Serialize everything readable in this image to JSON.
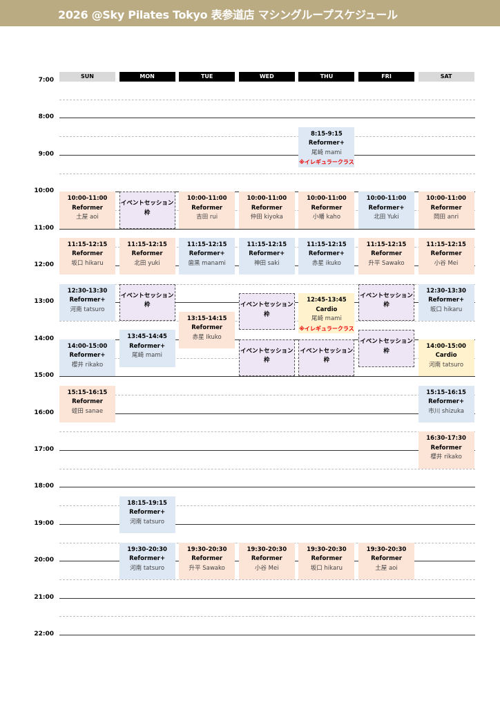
{
  "title": "2026 @Sky Pilates Tokyo 表参道店 マシングループスケジュール",
  "days": [
    {
      "label": "SUN",
      "style": "light"
    },
    {
      "label": "MON",
      "style": "dark"
    },
    {
      "label": "TUE",
      "style": "dark"
    },
    {
      "label": "WED",
      "style": "dark"
    },
    {
      "label": "THU",
      "style": "dark"
    },
    {
      "label": "FRI",
      "style": "dark"
    },
    {
      "label": "SAT",
      "style": "light"
    }
  ],
  "hours": [
    "7:00",
    "8:00",
    "9:00",
    "10:00",
    "11:00",
    "12:00",
    "13:00",
    "14:00",
    "15:00",
    "16:00",
    "17:00",
    "18:00",
    "19:00",
    "20:00",
    "21:00",
    "22:00"
  ],
  "colors": {
    "Reformer": "#fce4d6",
    "Reformer+": "#dde8f4",
    "Cardio": "#fff2cc",
    "event": "#eee6f5",
    "banner": "#bbab83",
    "note": "#ee0000"
  },
  "event_label": "イベントセッション枠",
  "classes": [
    {
      "day": 4,
      "time": "8:15-9:15",
      "class": "Reformer+",
      "instructor": "尾崎 mami",
      "note": "※イレギュラークラス"
    },
    {
      "day": 0,
      "time": "10:00-11:00",
      "class": "Reformer",
      "instructor": "土屋 aoi"
    },
    {
      "day": 2,
      "time": "10:00-11:00",
      "class": "Reformer",
      "instructor": "吉田 rui"
    },
    {
      "day": 3,
      "time": "10:00-11:00",
      "class": "Reformer",
      "instructor": "仲田 kiyoka"
    },
    {
      "day": 4,
      "time": "10:00-11:00",
      "class": "Reformer",
      "instructor": "小幡 kaho"
    },
    {
      "day": 5,
      "time": "10:00-11:00",
      "class": "Reformer+",
      "instructor": "北田 Yuki"
    },
    {
      "day": 6,
      "time": "10:00-11:00",
      "class": "Reformer",
      "instructor": "岡田 anri"
    },
    {
      "day": 0,
      "time": "11:15-12:15",
      "class": "Reformer",
      "instructor": "坂口 hikaru"
    },
    {
      "day": 1,
      "time": "11:15-12:15",
      "class": "Reformer",
      "instructor": "北田 yuki"
    },
    {
      "day": 2,
      "time": "11:15-12:15",
      "class": "Reformer+",
      "instructor": "歯黒 manami"
    },
    {
      "day": 3,
      "time": "11:15-12:15",
      "class": "Reformer+",
      "instructor": "神田 saki"
    },
    {
      "day": 4,
      "time": "11:15-12:15",
      "class": "Reformer+",
      "instructor": "赤星 ikuko"
    },
    {
      "day": 5,
      "time": "11:15-12:15",
      "class": "Reformer",
      "instructor": "升平 Sawako"
    },
    {
      "day": 6,
      "time": "11:15-12:15",
      "class": "Reformer",
      "instructor": "小谷 Mei"
    },
    {
      "day": 0,
      "time": "12:30-13:30",
      "class": "Reformer+",
      "instructor": "河南 tatsuro"
    },
    {
      "day": 4,
      "time": "12:45-13:45",
      "class": "Cardio",
      "instructor": "尾崎 mami",
      "note": "※イレギュラークラス"
    },
    {
      "day": 6,
      "time": "12:30-13:30",
      "class": "Reformer+",
      "instructor": "坂口 hikaru"
    },
    {
      "day": 2,
      "time": "13:15-14:15",
      "class": "Reformer",
      "instructor": "赤星 Ikuko"
    },
    {
      "day": 1,
      "time": "13:45-14:45",
      "class": "Reformer+",
      "instructor": "尾崎 mami"
    },
    {
      "day": 0,
      "time": "14:00-15:00",
      "class": "Reformer+",
      "instructor": "櫻井 rikako"
    },
    {
      "day": 6,
      "time": "14:00-15:00",
      "class": "Cardio",
      "instructor": "河南 tatsuro"
    },
    {
      "day": 0,
      "time": "15:15-16:15",
      "class": "Reformer",
      "instructor": "蛭田 sanae"
    },
    {
      "day": 6,
      "time": "15:15-16:15",
      "class": "Reformer+",
      "instructor": "市川 shizuka"
    },
    {
      "day": 6,
      "time": "16:30-17:30",
      "class": "Reformer",
      "instructor": "櫻井 rikako"
    },
    {
      "day": 1,
      "time": "18:15-19:15",
      "class": "Reformer+",
      "instructor": "河南 tatsuro"
    },
    {
      "day": 1,
      "time": "19:30-20:30",
      "class": "Reformer+",
      "instructor": "河南 tatsuro"
    },
    {
      "day": 2,
      "time": "19:30-20:30",
      "class": "Reformer",
      "instructor": "升平 Sawako"
    },
    {
      "day": 3,
      "time": "19:30-20:30",
      "class": "Reformer",
      "instructor": "小谷 Mei"
    },
    {
      "day": 4,
      "time": "19:30-20:30",
      "class": "Reformer",
      "instructor": "坂口 hikaru"
    },
    {
      "day": 5,
      "time": "19:30-20:30",
      "class": "Reformer",
      "instructor": "土屋 aoi"
    }
  ],
  "events": [
    {
      "day": 1,
      "time": "10:00-11:00"
    },
    {
      "day": 1,
      "time": "12:30-13:30"
    },
    {
      "day": 3,
      "time": "12:45-13:45"
    },
    {
      "day": 5,
      "time": "12:30-13:30"
    },
    {
      "day": 5,
      "time": "13:45-14:45"
    },
    {
      "day": 3,
      "time": "14:00-15:00"
    },
    {
      "day": 4,
      "time": "14:00-15:00"
    }
  ]
}
